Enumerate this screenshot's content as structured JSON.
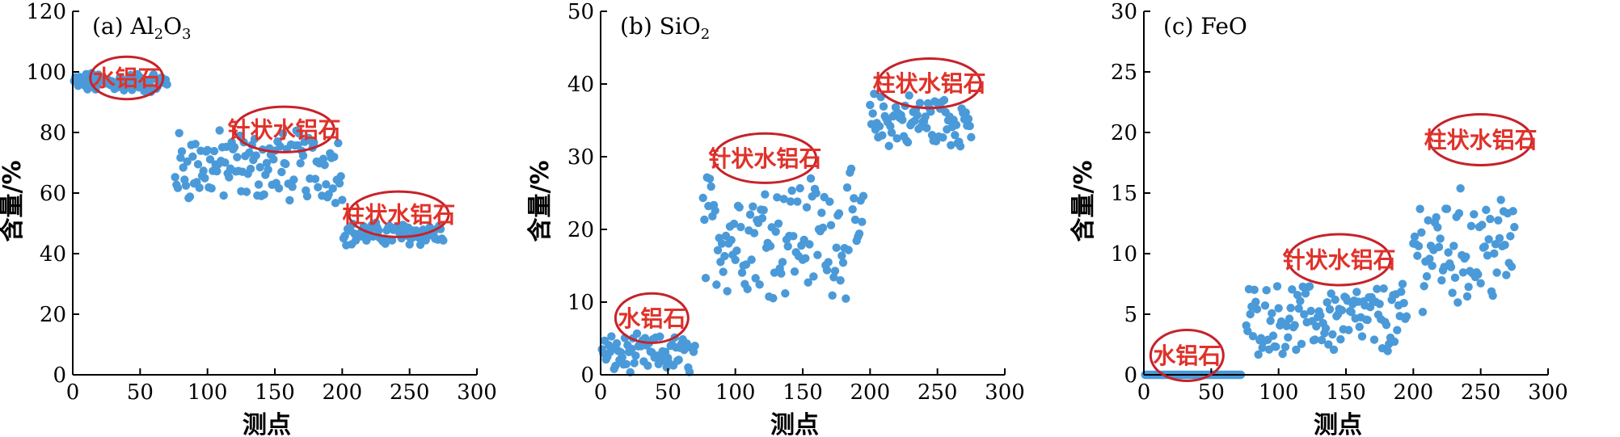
{
  "figure": {
    "point_color": "#4a9ad9",
    "ellipse_color": "#c6222a",
    "label_color": "#e0322a"
  },
  "chart_data": [
    {
      "type": "scatter",
      "title_prefix": "(a) Al",
      "title_sub1": "2",
      "title_mid": "O",
      "title_sub2": "3",
      "xlabel": "测点",
      "ylabel": "含量/%",
      "xlim": [
        0,
        300
      ],
      "ylim": [
        0,
        120
      ],
      "xticks": [
        0,
        50,
        100,
        150,
        200,
        250,
        300
      ],
      "yticks": [
        0,
        20,
        40,
        60,
        80,
        100,
        120
      ],
      "annotations": [
        {
          "text": "水铝石",
          "cx": 40,
          "cy": 98,
          "rx": 27,
          "ry": 7
        },
        {
          "text": "针状水铝石",
          "cx": 157,
          "cy": 81,
          "rx": 37,
          "ry": 7.5
        },
        {
          "text": "柱状水铝石",
          "cx": 242,
          "cy": 53,
          "rx": 37,
          "ry": 7.5
        }
      ],
      "segments": [
        {
          "from": 1,
          "to": 70,
          "base": 96.5,
          "amp": 2.8
        },
        {
          "from": 76,
          "to": 200,
          "base": 69,
          "amp": 10
        },
        {
          "from": 201,
          "to": 275,
          "base": 46.5,
          "amp": 3.2
        }
      ]
    },
    {
      "type": "scatter",
      "title_prefix": "(b) SiO",
      "title_sub1": "2",
      "title_mid": "",
      "title_sub2": "",
      "xlabel": "测点",
      "ylabel": "含量/%",
      "xlim": [
        0,
        300
      ],
      "ylim": [
        0,
        50
      ],
      "xticks": [
        0,
        50,
        100,
        150,
        200,
        250,
        300
      ],
      "yticks": [
        0,
        10,
        20,
        30,
        40,
        50
      ],
      "annotations": [
        {
          "text": "水铝石",
          "cx": 38,
          "cy": 7.8,
          "rx": 27,
          "ry": 3.4
        },
        {
          "text": "针状水铝石",
          "cx": 122,
          "cy": 29.8,
          "rx": 38,
          "ry": 3.4
        },
        {
          "text": "柱状水铝石",
          "cx": 244,
          "cy": 40.1,
          "rx": 38,
          "ry": 3.4
        }
      ],
      "segments": [
        {
          "from": 1,
          "to": 70,
          "base": 2.8,
          "amp": 2.2
        },
        {
          "from": 76,
          "to": 195,
          "base": 19.5,
          "amp": 7
        },
        {
          "from": 200,
          "to": 275,
          "base": 35,
          "amp": 3.2
        }
      ]
    },
    {
      "type": "scatter",
      "title_prefix": "(c) FeO",
      "title_sub1": "",
      "title_mid": "",
      "title_sub2": "",
      "xlabel": "测点",
      "ylabel": "含量/%",
      "xlim": [
        0,
        300
      ],
      "ylim": [
        0,
        30
      ],
      "xticks": [
        0,
        50,
        100,
        150,
        200,
        250,
        300
      ],
      "yticks": [
        0,
        5,
        10,
        15,
        20,
        25,
        30
      ],
      "annotations": [
        {
          "text": "水铝石",
          "cx": 32,
          "cy": 1.6,
          "rx": 27,
          "ry": 2.1
        },
        {
          "text": "针状水铝石",
          "cx": 145,
          "cy": 9.5,
          "rx": 38,
          "ry": 2.1
        },
        {
          "text": "柱状水铝石",
          "cx": 250,
          "cy": 19.4,
          "rx": 38,
          "ry": 2.1
        }
      ],
      "segments": [
        {
          "from": 1,
          "to": 72,
          "base": 0,
          "amp": 0
        },
        {
          "from": 76,
          "to": 195,
          "base": 4.6,
          "amp": 2.4
        },
        {
          "from": 200,
          "to": 275,
          "base": 10.5,
          "amp": 4
        }
      ]
    }
  ]
}
